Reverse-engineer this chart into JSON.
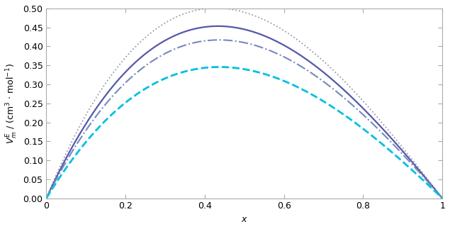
{
  "title": "",
  "xlabel": "$x$",
  "ylabel": "$V_{m}^{E}$ / (cm$^{3}$ $\\cdot$ mol$^{-1}$)",
  "xlim": [
    0,
    1
  ],
  "ylim": [
    0.0,
    0.5
  ],
  "yticks": [
    0.0,
    0.05,
    0.1,
    0.15,
    0.2,
    0.25,
    0.3,
    0.35,
    0.4,
    0.45,
    0.5
  ],
  "xticks": [
    0,
    0.2,
    0.4,
    0.6,
    0.8,
    1
  ],
  "curves": [
    {
      "label": "dotted",
      "color": "#999aab",
      "linewidth": 1.3,
      "linestyle": "dotted",
      "A0": 1.96,
      "A1": -0.6,
      "A2": 0.0
    },
    {
      "label": "solid",
      "color": "#5558a8",
      "linewidth": 1.6,
      "linestyle": "solid",
      "A0": 1.78,
      "A1": -0.5,
      "A2": 0.0
    },
    {
      "label": "dashdot",
      "color": "#7788bb",
      "linewidth": 1.5,
      "linestyle": "dashdot",
      "A0": 1.64,
      "A1": -0.44,
      "A2": 0.0
    },
    {
      "label": "dashed",
      "color": "#00c0e0",
      "linewidth": 2.0,
      "linestyle": "dashed",
      "A0": 1.36,
      "A1": -0.36,
      "A2": 0.0
    }
  ],
  "background_color": "#ffffff",
  "tick_fontsize": 9
}
